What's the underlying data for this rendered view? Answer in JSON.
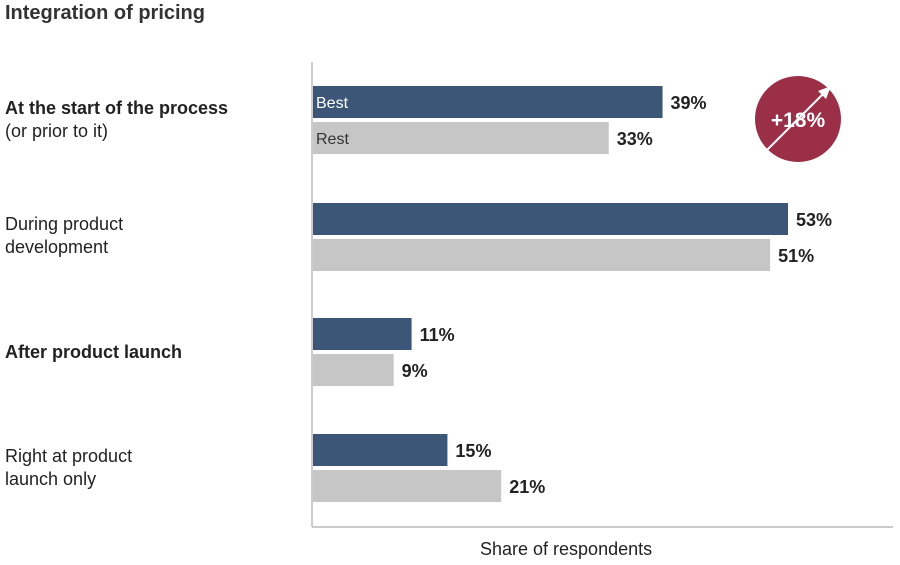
{
  "chart_data": {
    "type": "bar",
    "orientation": "horizontal",
    "title": "Integration of pricing",
    "xlabel": "Share of respondents",
    "categories": [
      {
        "line1": "At the start of the process",
        "line2": "(or prior to it)",
        "bold_line1": true
      },
      {
        "line1": "During product",
        "line2": "development",
        "bold_line1": false
      },
      {
        "line1": "After product launch",
        "line2": "",
        "bold_line1": true
      },
      {
        "line1": "Right at product",
        "line2": "launch only",
        "bold_line1": false
      }
    ],
    "series": [
      {
        "name": "Best",
        "color": "#3b5676",
        "values": [
          39,
          53,
          11,
          15
        ],
        "labels": [
          "39%",
          "53%",
          "11%",
          "15%"
        ]
      },
      {
        "name": "Rest",
        "color": "#c6c6c6",
        "values": [
          33,
          51,
          9,
          21
        ],
        "labels": [
          "33%",
          "51%",
          "9%",
          "21%"
        ]
      }
    ],
    "xlim": [
      0,
      53
    ],
    "grid": false,
    "annotation": {
      "text": "+18%",
      "color": "#9b2f48"
    }
  }
}
